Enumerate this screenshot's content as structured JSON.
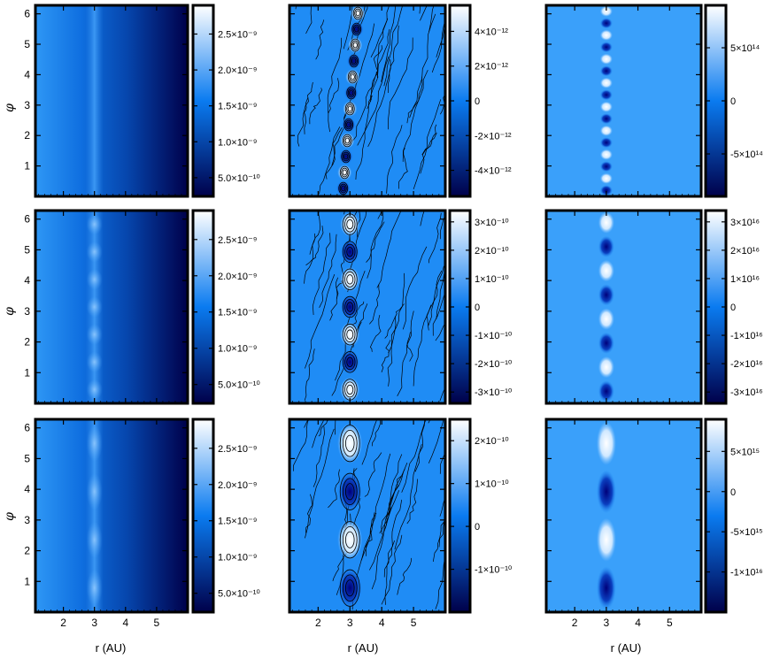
{
  "figure": {
    "xlabel": "r (AU)",
    "ylabel": "φ",
    "colors": {
      "dark": "#00004a",
      "mid": "#0a7bf0",
      "light": "#ffffff",
      "contour": "#000000"
    }
  },
  "chart_data": [
    {
      "type": "heatmap",
      "row": 1,
      "col": 1,
      "quantity": "density",
      "xlim": [
        1.1,
        6.0
      ],
      "ylim": [
        0.0,
        6.28
      ],
      "x_ticks": [
        "2",
        "3",
        "4",
        "5"
      ],
      "y_ticks": [
        "1",
        "2",
        "3",
        "4",
        "5",
        "6"
      ],
      "colorbar": {
        "range": [
          2.4e-10,
          2.9e-09
        ],
        "ticks": [
          {
            "value": 5e-10,
            "label": "5.0×10⁻¹⁰"
          },
          {
            "value": 1e-09,
            "label": "1.0×10⁻⁹"
          },
          {
            "value": 1.5e-09,
            "label": "1.5×10⁻⁹"
          },
          {
            "value": 2e-09,
            "label": "2.0×10⁻⁹"
          },
          {
            "value": 2.5e-09,
            "label": "2.5×10⁻⁹"
          }
        ]
      }
    },
    {
      "type": "heatmap",
      "row": 1,
      "col": 2,
      "quantity": "vortensity perturbation with contours",
      "xlim": [
        1.1,
        6.0
      ],
      "ylim": [
        0.0,
        6.28
      ],
      "vortex_count": 12,
      "x_ticks": [
        "2",
        "3",
        "4",
        "5"
      ],
      "y_ticks": [],
      "colorbar": {
        "range": [
          -5.5e-12,
          5.5e-12
        ],
        "ticks": [
          {
            "value": -4e-12,
            "label": "-4×10⁻¹²"
          },
          {
            "value": -2e-12,
            "label": "-2×10⁻¹²"
          },
          {
            "value": 0,
            "label": "0"
          },
          {
            "value": 2e-12,
            "label": "2×10⁻¹²"
          },
          {
            "value": 4e-12,
            "label": "4×10⁻¹²"
          }
        ]
      }
    },
    {
      "type": "heatmap",
      "row": 1,
      "col": 3,
      "quantity": "third field",
      "xlim": [
        1.1,
        6.0
      ],
      "ylim": [
        0.0,
        6.28
      ],
      "x_ticks": [
        "2",
        "3",
        "4",
        "5"
      ],
      "y_ticks": [],
      "colorbar": {
        "range": [
          -900000000000000.0,
          900000000000000.0
        ],
        "ticks": [
          {
            "value": -500000000000000.0,
            "label": "-5×10¹⁴"
          },
          {
            "value": 0,
            "label": "0"
          },
          {
            "value": 500000000000000.0,
            "label": "5×10¹⁴"
          }
        ]
      }
    },
    {
      "type": "heatmap",
      "row": 2,
      "col": 1,
      "quantity": "density",
      "xlim": [
        1.1,
        6.0
      ],
      "ylim": [
        0.0,
        6.28
      ],
      "x_ticks": [
        "2",
        "3",
        "4",
        "5"
      ],
      "y_ticks": [
        "1",
        "2",
        "3",
        "4",
        "5",
        "6"
      ],
      "colorbar": {
        "range": [
          2.4e-10,
          2.9e-09
        ],
        "ticks": [
          {
            "value": 5e-10,
            "label": "5.0×10⁻¹⁰"
          },
          {
            "value": 1e-09,
            "label": "1.0×10⁻⁹"
          },
          {
            "value": 1.5e-09,
            "label": "1.5×10⁻⁹"
          },
          {
            "value": 2e-09,
            "label": "2.0×10⁻⁹"
          },
          {
            "value": 2.5e-09,
            "label": "2.5×10⁻⁹"
          }
        ]
      }
    },
    {
      "type": "heatmap",
      "row": 2,
      "col": 2,
      "quantity": "vortensity perturbation with contours",
      "xlim": [
        1.1,
        6.0
      ],
      "ylim": [
        0.0,
        6.28
      ],
      "vortex_count": 7,
      "x_ticks": [
        "2",
        "3",
        "4",
        "5"
      ],
      "y_ticks": [],
      "colorbar": {
        "range": [
          -3.4e-10,
          3.4e-10
        ],
        "ticks": [
          {
            "value": -3e-10,
            "label": "-3×10⁻¹⁰"
          },
          {
            "value": -2e-10,
            "label": "-2×10⁻¹⁰"
          },
          {
            "value": -1e-10,
            "label": "-1×10⁻¹⁰"
          },
          {
            "value": 0,
            "label": "0"
          },
          {
            "value": 1e-10,
            "label": "1×10⁻¹⁰"
          },
          {
            "value": 2e-10,
            "label": "2×10⁻¹⁰"
          },
          {
            "value": 3e-10,
            "label": "3×10⁻¹⁰"
          }
        ]
      }
    },
    {
      "type": "heatmap",
      "row": 2,
      "col": 3,
      "quantity": "third field",
      "xlim": [
        1.1,
        6.0
      ],
      "ylim": [
        0.0,
        6.28
      ],
      "x_ticks": [
        "2",
        "3",
        "4",
        "5"
      ],
      "y_ticks": [],
      "colorbar": {
        "range": [
          -3.4e+16,
          3.4e+16
        ],
        "ticks": [
          {
            "value": -3e+16,
            "label": "-3×10¹⁶"
          },
          {
            "value": -2e+16,
            "label": "-2×10¹⁶"
          },
          {
            "value": -1e+16,
            "label": "-1×10¹⁶"
          },
          {
            "value": 0,
            "label": "0"
          },
          {
            "value": 1e+16,
            "label": "1×10¹⁶"
          },
          {
            "value": 2e+16,
            "label": "2×10¹⁶"
          },
          {
            "value": 3e+16,
            "label": "3×10¹⁶"
          }
        ]
      }
    },
    {
      "type": "heatmap",
      "row": 3,
      "col": 1,
      "quantity": "density",
      "xlim": [
        1.1,
        6.0
      ],
      "ylim": [
        0.0,
        6.28
      ],
      "x_ticks": [
        "2",
        "3",
        "4",
        "5"
      ],
      "y_ticks": [
        "1",
        "2",
        "3",
        "4",
        "5",
        "6"
      ],
      "colorbar": {
        "range": [
          2.4e-10,
          2.9e-09
        ],
        "ticks": [
          {
            "value": 5e-10,
            "label": "5.0×10⁻¹⁰"
          },
          {
            "value": 1e-09,
            "label": "1.0×10⁻⁹"
          },
          {
            "value": 1.5e-09,
            "label": "1.5×10⁻⁹"
          },
          {
            "value": 2e-09,
            "label": "2.0×10⁻⁹"
          },
          {
            "value": 2.5e-09,
            "label": "2.5×10⁻⁹"
          }
        ]
      }
    },
    {
      "type": "heatmap",
      "row": 3,
      "col": 2,
      "quantity": "vortensity perturbation with contours",
      "xlim": [
        1.1,
        6.0
      ],
      "ylim": [
        0.0,
        6.28
      ],
      "vortex_count": 4,
      "x_ticks": [
        "2",
        "3",
        "4",
        "5"
      ],
      "y_ticks": [],
      "colorbar": {
        "range": [
          -2e-10,
          2.5e-10
        ],
        "ticks": [
          {
            "value": -1e-10,
            "label": "-1×10⁻¹⁰"
          },
          {
            "value": 0,
            "label": "0"
          },
          {
            "value": 1e-10,
            "label": "1×10⁻¹⁰"
          },
          {
            "value": 2e-10,
            "label": "2×10⁻¹⁰"
          }
        ]
      }
    },
    {
      "type": "heatmap",
      "row": 3,
      "col": 3,
      "quantity": "third field",
      "xlim": [
        1.1,
        6.0
      ],
      "ylim": [
        0.0,
        6.28
      ],
      "x_ticks": [
        "2",
        "3",
        "4",
        "5"
      ],
      "y_ticks": [],
      "colorbar": {
        "range": [
          -1.5e+16,
          9000000000000000.0
        ],
        "ticks": [
          {
            "value": -1e+16,
            "label": "-1×10¹⁶"
          },
          {
            "value": -5000000000000000.0,
            "label": "-5×10¹⁵"
          },
          {
            "value": 0,
            "label": "0"
          },
          {
            "value": 5000000000000000.0,
            "label": "5×10¹⁵"
          }
        ]
      }
    }
  ]
}
